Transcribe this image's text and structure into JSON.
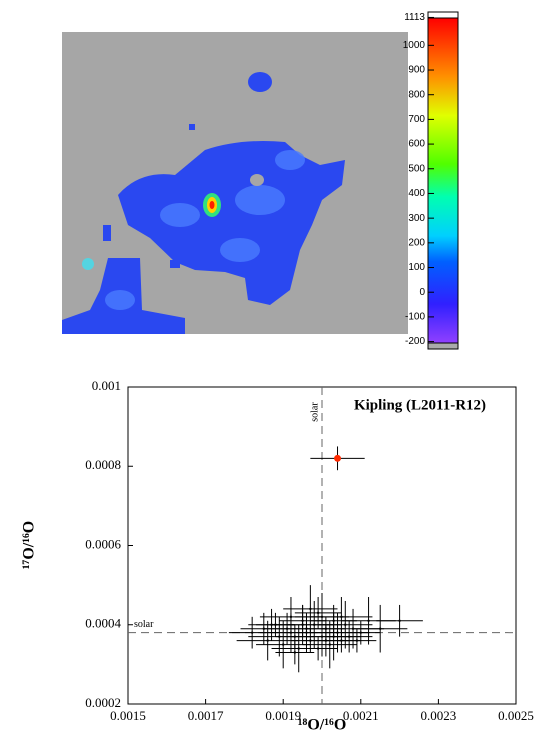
{
  "chart_data": [
    {
      "type": "image",
      "colorbar_lim": [
        -230,
        1135
      ],
      "colorbar_ticks": [
        1113,
        1000,
        900,
        800,
        700,
        600,
        500,
        400,
        300,
        200,
        100,
        0,
        -100,
        -200
      ]
    },
    {
      "type": "scatter",
      "annotation": "Kipling  (L2011-R12)",
      "x_label": "¹⁸O/¹⁶O",
      "y_label": "¹⁷O/¹⁶O",
      "xlim": [
        0.0015,
        0.0025
      ],
      "ylim": [
        0.0002,
        0.001
      ],
      "xticks": [
        0.0015,
        0.0017,
        0.0019,
        0.0021,
        0.0023,
        0.0025
      ],
      "yticks": [
        0.0002,
        0.0004,
        0.0006,
        0.0008,
        0.001
      ],
      "reference_lines": [
        {
          "axis": "x",
          "value": 0.002,
          "label": "solar"
        },
        {
          "axis": "y",
          "value": 0.00038,
          "label": "solar"
        }
      ],
      "series": [
        {
          "color": "#000000",
          "x": [
            0.00182,
            0.00186,
            0.00188,
            0.0019,
            0.00191,
            0.00192,
            0.00193,
            0.00194,
            0.00195,
            0.00196,
            0.00197,
            0.00198,
            0.00199,
            0.002,
            0.00201,
            0.00202,
            0.00203,
            0.00204,
            0.00205,
            0.00206,
            0.00207,
            0.00208,
            0.0021,
            0.00212,
            0.00185,
            0.00189,
            0.00193,
            0.00197,
            0.00201,
            0.00205,
            0.00209,
            0.00215,
            0.0022,
            0.00195,
            0.00199,
            0.00203,
            0.00187,
            0.00192,
            0.00196,
            0.002
          ],
          "y": [
            0.00038,
            0.00036,
            0.0004,
            0.00035,
            0.00039,
            0.00042,
            0.00037,
            0.00034,
            0.00041,
            0.00038,
            0.00036,
            0.0004,
            0.00043,
            0.00037,
            0.00039,
            0.00035,
            0.00041,
            0.00038,
            0.00036,
            0.0004,
            0.00037,
            0.00039,
            0.00038,
            0.00041,
            0.00039,
            0.00037,
            0.00033,
            0.00044,
            0.00036,
            0.00042,
            0.00036,
            0.00039,
            0.00041,
            0.0004,
            0.00034,
            0.00037,
            0.0004,
            0.00038,
            0.00039,
            0.00042
          ],
          "xerr": [
            6e-05,
            8e-05,
            5e-05,
            7e-05,
            6e-05,
            8e-05,
            5e-05,
            7e-05,
            6e-05,
            8e-05,
            5e-05,
            7e-05,
            6e-05,
            8e-05,
            5e-05,
            7e-05,
            6e-05,
            8e-05,
            5e-05,
            7e-05,
            6e-05,
            8e-05,
            5e-05,
            7e-05,
            6e-05,
            8e-05,
            5e-05,
            7e-05,
            6e-05,
            8e-05,
            5e-05,
            7e-05,
            6e-05,
            8e-05,
            5e-05,
            7e-05,
            6e-05,
            8e-05,
            5e-05,
            7e-05
          ],
          "yerr": [
            4e-05,
            5e-05,
            3e-05,
            6e-05,
            4e-05,
            5e-05,
            3e-05,
            6e-05,
            4e-05,
            5e-05,
            3e-05,
            6e-05,
            4e-05,
            5e-05,
            3e-05,
            6e-05,
            4e-05,
            5e-05,
            3e-05,
            6e-05,
            4e-05,
            5e-05,
            3e-05,
            6e-05,
            4e-05,
            5e-05,
            3e-05,
            6e-05,
            4e-05,
            5e-05,
            3e-05,
            6e-05,
            4e-05,
            5e-05,
            3e-05,
            6e-05,
            4e-05,
            5e-05,
            3e-05,
            6e-05
          ]
        },
        {
          "color": "#ff2a00",
          "x": [
            0.00204
          ],
          "y": [
            0.00082
          ],
          "xerr": [
            7e-05
          ],
          "yerr": [
            3e-05
          ]
        }
      ]
    }
  ]
}
